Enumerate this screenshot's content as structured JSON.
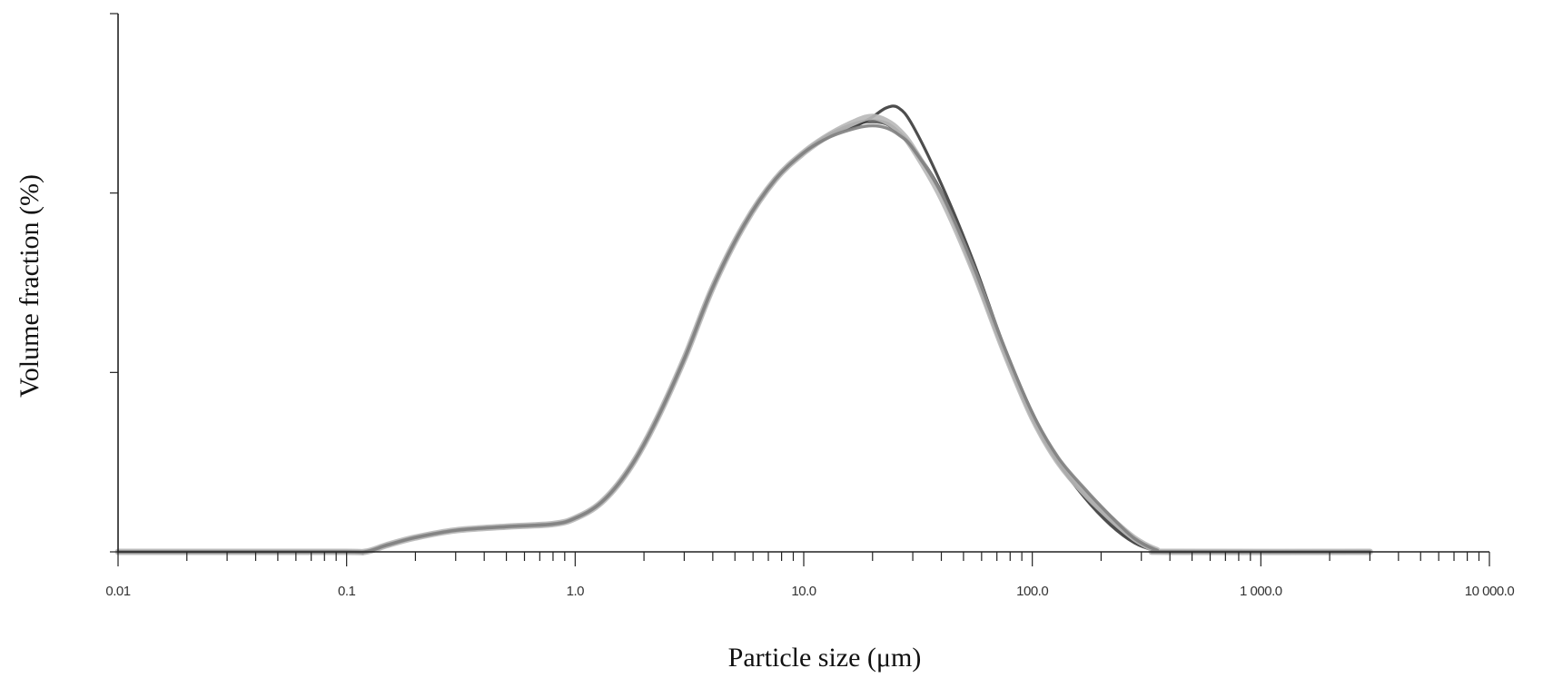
{
  "chart_data": {
    "type": "line",
    "xlabel": "Particle size (μm)",
    "ylabel": "Volume fraction (%)",
    "x_scale": "log",
    "xlim": [
      0.01,
      10000
    ],
    "ylim": [
      0,
      1.2
    ],
    "x_ticks": [
      0.01,
      0.1,
      1,
      10,
      100,
      1000,
      10000
    ],
    "x_tick_labels": [
      "0.01",
      "0.1",
      "1.0",
      "10.0",
      "100.0",
      "1 000.0",
      "10 000.0"
    ],
    "y_ticks": [
      0,
      0.4,
      0.8,
      1.2
    ],
    "grid": false,
    "legend": "none",
    "series": [
      {
        "color": "#5a5a5a",
        "x": [
          0.01,
          0.09,
          0.12,
          0.15,
          0.2,
          0.3,
          0.5,
          0.8,
          1.0,
          1.3,
          1.7,
          2.2,
          3.0,
          4.0,
          5.5,
          7.5,
          10,
          13,
          17,
          20,
          23,
          26,
          30,
          40,
          55,
          75,
          100,
          130,
          170,
          220,
          280,
          350,
          400,
          3000
        ],
        "y": [
          0,
          0,
          0,
          0.015,
          0.032,
          0.048,
          0.056,
          0.062,
          0.075,
          0.11,
          0.18,
          0.28,
          0.43,
          0.59,
          0.73,
          0.83,
          0.89,
          0.93,
          0.955,
          0.96,
          0.955,
          0.935,
          0.9,
          0.8,
          0.63,
          0.45,
          0.3,
          0.2,
          0.13,
          0.07,
          0.025,
          0.003,
          0,
          0
        ]
      },
      {
        "color": "#3a3a3a",
        "x": [
          0.01,
          0.09,
          0.12,
          0.15,
          0.2,
          0.3,
          0.5,
          0.8,
          1.0,
          1.3,
          1.7,
          2.2,
          3.0,
          4.0,
          5.5,
          7.5,
          10,
          13,
          17,
          20,
          23,
          26,
          30,
          40,
          55,
          75,
          100,
          130,
          170,
          220,
          280,
          350,
          400,
          3000
        ],
        "y": [
          0,
          0,
          0,
          0.015,
          0.032,
          0.048,
          0.056,
          0.062,
          0.075,
          0.11,
          0.18,
          0.28,
          0.43,
          0.59,
          0.73,
          0.83,
          0.89,
          0.93,
          0.95,
          0.97,
          0.99,
          0.99,
          0.95,
          0.82,
          0.65,
          0.46,
          0.31,
          0.2,
          0.12,
          0.06,
          0.02,
          0.002,
          0,
          0
        ]
      },
      {
        "color": "#b8b8b8",
        "x": [
          0.01,
          0.09,
          0.12,
          0.15,
          0.2,
          0.3,
          0.5,
          0.8,
          1.0,
          1.3,
          1.7,
          2.2,
          3.0,
          4.0,
          5.5,
          7.5,
          10,
          13,
          17,
          20,
          23,
          26,
          30,
          40,
          55,
          75,
          100,
          130,
          170,
          220,
          280,
          350,
          400,
          3000
        ],
        "y": [
          0,
          0,
          0,
          0.015,
          0.032,
          0.048,
          0.056,
          0.062,
          0.075,
          0.11,
          0.18,
          0.28,
          0.43,
          0.59,
          0.73,
          0.83,
          0.89,
          0.93,
          0.96,
          0.97,
          0.96,
          0.94,
          0.9,
          0.79,
          0.63,
          0.45,
          0.3,
          0.2,
          0.13,
          0.075,
          0.03,
          0.004,
          0,
          0
        ]
      },
      {
        "color": "#808080",
        "x": [
          0.01,
          0.09,
          0.12,
          0.15,
          0.2,
          0.3,
          0.5,
          0.8,
          1.0,
          1.3,
          1.7,
          2.2,
          3.0,
          4.0,
          5.5,
          7.5,
          10,
          13,
          17,
          20,
          23,
          26,
          30,
          40,
          55,
          75,
          100,
          130,
          170,
          220,
          280,
          350,
          400,
          3000
        ],
        "y": [
          0,
          0,
          0,
          0.015,
          0.032,
          0.048,
          0.056,
          0.062,
          0.075,
          0.11,
          0.18,
          0.28,
          0.43,
          0.59,
          0.73,
          0.83,
          0.89,
          0.925,
          0.945,
          0.95,
          0.945,
          0.93,
          0.9,
          0.8,
          0.64,
          0.46,
          0.31,
          0.21,
          0.14,
          0.08,
          0.03,
          0.004,
          0,
          0
        ]
      }
    ]
  }
}
